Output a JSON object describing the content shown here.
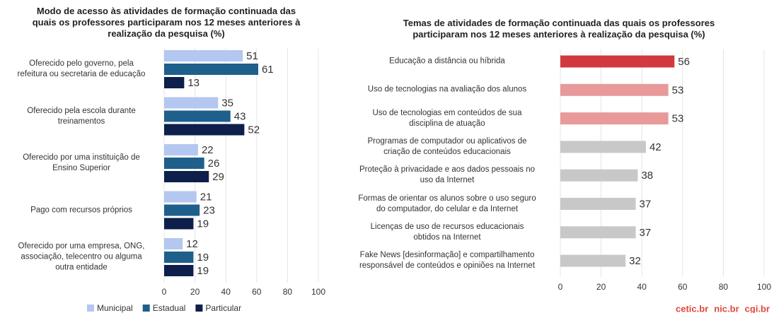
{
  "chart_data": [
    {
      "type": "hbar-grouped",
      "title": "Modo de acesso às atividades de formação continuada das\nquais os professores participaram nos 12 meses anteriores à\nrealização da pesquisa (%)",
      "categories": [
        "Oferecido pelo governo, pela\nrefeitura ou secretaria de educação",
        "Oferecido pela escola durante\ntreinamentos",
        "Oferecido por uma instituição de\nEnsino Superior",
        "Pago com recursos próprios",
        "Oferecido por uma empresa, ONG,\nassociação, telecentro ou alguma\noutra entidade"
      ],
      "series": [
        {
          "name": "Municipal",
          "color": "#b4c7f0",
          "values": [
            51,
            35,
            22,
            21,
            12
          ]
        },
        {
          "name": "Estadual",
          "color": "#1f5f8b",
          "values": [
            61,
            43,
            26,
            23,
            19
          ]
        },
        {
          "name": "Particular",
          "color": "#0d1f4a",
          "values": [
            13,
            52,
            29,
            19,
            19
          ]
        }
      ],
      "xlim": [
        0,
        100
      ],
      "xticks": [
        0,
        20,
        40,
        60,
        80,
        100
      ],
      "grid": true,
      "legend": "bottom"
    },
    {
      "type": "hbar",
      "title": "Temas de atividades de formação continuada das quais os professores\nparticiparam nos 12 meses anteriores à realização da pesquisa (%)",
      "categories": [
        "Educação a distância ou híbrida",
        "Uso de tecnologias na avaliação dos alunos",
        "Uso de tecnologias em conteúdos de sua\ndisciplina de atuação",
        "Programas de computador ou aplicativos de\ncriação de conteúdos educacionais",
        "Proteção à privacidade e aos dados pessoais no\nuso da Internet",
        "Formas de orientar os alunos sobre o uso seguro\ndo computador, do celular e da Internet",
        "Licenças de uso de recursos educacionais\nobtidos na Internet",
        "Fake News [desinformação] e compartilhamento\nresponsável de conteúdos e opiniões na Internet"
      ],
      "values": [
        56,
        53,
        53,
        42,
        38,
        37,
        37,
        32
      ],
      "colors": [
        "#d0393e",
        "#e8999a",
        "#e8999a",
        "#c8c8c8",
        "#c8c8c8",
        "#c8c8c8",
        "#c8c8c8",
        "#c8c8c8"
      ],
      "xlim": [
        0,
        100
      ],
      "xticks": [
        0,
        20,
        40,
        60,
        80,
        100
      ],
      "grid": true
    }
  ],
  "logos": [
    "cetic.br",
    "nic.br",
    "cgi.br"
  ]
}
